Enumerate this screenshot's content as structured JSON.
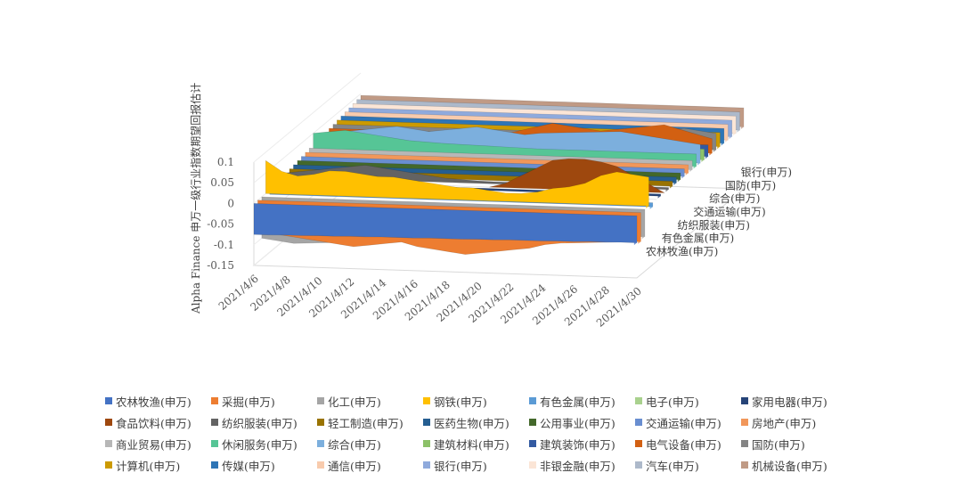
{
  "chart_data": {
    "type": "area",
    "view": "3d",
    "ylabel": "Alpha Finance 申万一级行业指数期望回报估计",
    "ylim": [
      -0.15,
      0.1
    ],
    "yticks": [
      "0.1",
      "0.05",
      "0",
      "-0.05",
      "-0.1",
      "-0.15"
    ],
    "x": [
      "2021/4/6",
      "2021/4/7",
      "2021/4/8",
      "2021/4/9",
      "2021/4/10",
      "2021/4/11",
      "2021/4/12",
      "2021/4/13",
      "2021/4/14",
      "2021/4/15",
      "2021/4/16",
      "2021/4/17",
      "2021/4/18",
      "2021/4/19",
      "2021/4/20",
      "2021/4/21",
      "2021/4/22",
      "2021/4/23",
      "2021/4/24",
      "2021/4/25",
      "2021/4/26",
      "2021/4/27",
      "2021/4/28",
      "2021/4/29",
      "2021/4/30"
    ],
    "xticks": [
      "2021/4/6",
      "2021/4/8",
      "2021/4/10",
      "2021/4/12",
      "2021/4/14",
      "2021/4/16",
      "2021/4/18",
      "2021/4/20",
      "2021/4/22",
      "2021/4/24",
      "2021/4/26",
      "2021/4/28",
      "2021/4/30"
    ],
    "depth_labels": [
      "农林牧渔(申万)",
      "有色金属(申万)",
      "纺织服装(申万)",
      "交通运输(申万)",
      "综合(申万)",
      "国防(申万)",
      "银行(申万)"
    ],
    "legend_placement": "bottom",
    "grid": true,
    "series": [
      {
        "name": "农林牧渔(申万)",
        "color": "#4472c4",
        "values": [
          -0.075,
          -0.075,
          -0.074,
          -0.074,
          -0.073,
          -0.073,
          -0.072,
          -0.072,
          -0.071,
          -0.071,
          -0.071,
          -0.07,
          -0.07,
          -0.07,
          -0.069,
          -0.069,
          -0.068,
          -0.068,
          -0.068,
          -0.067,
          -0.067,
          -0.066,
          -0.066,
          -0.065,
          -0.065
        ]
      },
      {
        "name": "采掘(申万)",
        "color": "#ed7d31",
        "values": [
          -0.07,
          -0.08,
          -0.085,
          -0.09,
          -0.095,
          -0.1,
          -0.105,
          -0.1,
          -0.095,
          -0.09,
          -0.1,
          -0.105,
          -0.11,
          -0.115,
          -0.11,
          -0.105,
          -0.1,
          -0.095,
          -0.085,
          -0.08,
          -0.078,
          -0.076,
          -0.074,
          -0.072,
          -0.07
        ]
      },
      {
        "name": "化工(申万)",
        "color": "#a5a5a5",
        "values": [
          -0.1,
          -0.105,
          -0.11,
          -0.108,
          -0.106,
          -0.104,
          -0.102,
          -0.1,
          -0.098,
          -0.096,
          -0.094,
          -0.092,
          -0.09,
          -0.088,
          -0.086,
          -0.084,
          -0.082,
          -0.08,
          -0.078,
          -0.076,
          -0.074,
          -0.072,
          -0.07,
          -0.068,
          -0.066
        ]
      },
      {
        "name": "钢铁(申万)",
        "color": "#ffc000",
        "values": [
          0.08,
          0.055,
          0.045,
          0.05,
          0.06,
          0.06,
          0.055,
          0.05,
          0.05,
          0.045,
          0.04,
          0.035,
          0.03,
          0.03,
          0.025,
          0.02,
          0.02,
          0.025,
          0.035,
          0.04,
          0.05,
          0.07,
          0.08,
          0.075,
          0.07
        ]
      },
      {
        "name": "有色金属(申万)",
        "color": "#5b9bd5",
        "values": [
          -0.01,
          -0.01,
          -0.01,
          -0.01,
          -0.01,
          -0.01,
          -0.01,
          -0.01,
          -0.01,
          -0.01,
          -0.01,
          -0.01,
          -0.01,
          -0.01,
          -0.01,
          -0.01,
          -0.01,
          -0.01,
          -0.01,
          -0.01,
          -0.01,
          -0.01,
          -0.01,
          -0.01,
          -0.01
        ]
      },
      {
        "name": "电子(申万)",
        "color": "#a9d18e",
        "values": [
          0.0,
          0.0,
          0.0,
          0.0,
          0.0,
          0.0,
          0.0,
          0.0,
          0.0,
          0.0,
          0.0,
          0.0,
          0.0,
          0.0,
          0.0,
          0.0,
          0.0,
          0.0,
          0.0,
          0.0,
          0.0,
          0.0,
          0.0,
          0.0,
          0.0
        ]
      },
      {
        "name": "家用电器(申万)",
        "color": "#264478",
        "values": [
          0.005,
          0.005,
          0.005,
          0.005,
          0.005,
          0.005,
          0.005,
          0.005,
          0.005,
          0.005,
          0.005,
          0.005,
          0.005,
          0.005,
          0.005,
          0.005,
          0.005,
          0.005,
          0.005,
          0.005,
          0.005,
          0.005,
          0.005,
          0.005,
          0.005
        ]
      },
      {
        "name": "食品饮料(申万)",
        "color": "#9e480e",
        "values": [
          0.0,
          0.0,
          0.0,
          0.0,
          0.0,
          0.0,
          0.0,
          0.0,
          0.0,
          0.0,
          0.0,
          0.0,
          0.0,
          0.0,
          0.01,
          0.03,
          0.05,
          0.07,
          0.075,
          0.075,
          0.07,
          0.06,
          0.04,
          0.02,
          0.0
        ]
      },
      {
        "name": "纺织服装(申万)",
        "color": "#636363",
        "values": [
          0.01,
          0.015,
          0.02,
          0.025,
          0.03,
          0.035,
          0.03,
          0.025,
          0.02,
          0.015,
          0.01,
          0.008,
          0.006,
          0.005,
          0.005,
          0.005,
          0.005,
          0.005,
          0.005,
          0.005,
          0.005,
          0.005,
          0.005,
          0.005,
          0.005
        ]
      },
      {
        "name": "轻工制造(申万)",
        "color": "#997300",
        "values": [
          0.012,
          0.012,
          0.012,
          0.012,
          0.012,
          0.012,
          0.012,
          0.012,
          0.012,
          0.012,
          0.012,
          0.012,
          0.012,
          0.012,
          0.012,
          0.012,
          0.012,
          0.012,
          0.012,
          0.012,
          0.012,
          0.012,
          0.012,
          0.012,
          0.012
        ]
      },
      {
        "name": "医药生物(申万)",
        "color": "#255e91",
        "values": [
          0.014,
          0.014,
          0.014,
          0.014,
          0.014,
          0.014,
          0.014,
          0.014,
          0.014,
          0.014,
          0.014,
          0.014,
          0.014,
          0.014,
          0.014,
          0.014,
          0.014,
          0.014,
          0.014,
          0.014,
          0.014,
          0.014,
          0.014,
          0.014,
          0.014
        ]
      },
      {
        "name": "公用事业(申万)",
        "color": "#43682b",
        "values": [
          0.016,
          0.016,
          0.016,
          0.016,
          0.016,
          0.016,
          0.016,
          0.016,
          0.016,
          0.016,
          0.016,
          0.016,
          0.016,
          0.016,
          0.016,
          0.016,
          0.016,
          0.016,
          0.016,
          0.016,
          0.016,
          0.016,
          0.016,
          0.016,
          0.016
        ]
      },
      {
        "name": "交通运输(申万)",
        "color": "#698ed0",
        "values": [
          0.018,
          0.018,
          0.018,
          0.018,
          0.018,
          0.018,
          0.018,
          0.018,
          0.018,
          0.018,
          0.018,
          0.018,
          0.018,
          0.018,
          0.018,
          0.018,
          0.018,
          0.018,
          0.018,
          0.018,
          0.018,
          0.018,
          0.018,
          0.018,
          0.018
        ]
      },
      {
        "name": "房地产(申万)",
        "color": "#f1975a",
        "values": [
          0.02,
          0.02,
          0.02,
          0.02,
          0.02,
          0.02,
          0.02,
          0.02,
          0.02,
          0.02,
          0.02,
          0.02,
          0.02,
          0.02,
          0.02,
          0.02,
          0.02,
          0.02,
          0.02,
          0.02,
          0.02,
          0.02,
          0.02,
          0.02,
          0.02
        ]
      },
      {
        "name": "商业贸易(申万)",
        "color": "#b7b7b7",
        "values": [
          0.022,
          0.022,
          0.022,
          0.022,
          0.022,
          0.022,
          0.022,
          0.022,
          0.022,
          0.022,
          0.022,
          0.022,
          0.022,
          0.022,
          0.022,
          0.022,
          0.022,
          0.022,
          0.022,
          0.022,
          0.022,
          0.022,
          0.022,
          0.022,
          0.022
        ]
      },
      {
        "name": "休闲服务(申万)",
        "color": "#56c596",
        "values": [
          0.05,
          0.055,
          0.06,
          0.055,
          0.05,
          0.045,
          0.04,
          0.038,
          0.036,
          0.035,
          0.034,
          0.033,
          0.032,
          0.031,
          0.03,
          0.03,
          0.03,
          0.03,
          0.03,
          0.03,
          0.03,
          0.03,
          0.03,
          0.03,
          0.03
        ]
      },
      {
        "name": "综合(申万)",
        "color": "#7cafdd",
        "values": [
          0.04,
          0.045,
          0.05,
          0.055,
          0.06,
          0.065,
          0.06,
          0.055,
          0.06,
          0.065,
          0.07,
          0.065,
          0.06,
          0.055,
          0.06,
          0.062,
          0.064,
          0.066,
          0.068,
          0.07,
          0.065,
          0.06,
          0.055,
          0.05,
          0.045
        ]
      },
      {
        "name": "建筑材料(申万)",
        "color": "#8cc168",
        "values": [
          0.026,
          0.026,
          0.026,
          0.026,
          0.026,
          0.026,
          0.026,
          0.026,
          0.026,
          0.026,
          0.026,
          0.026,
          0.026,
          0.026,
          0.026,
          0.026,
          0.026,
          0.026,
          0.026,
          0.026,
          0.026,
          0.026,
          0.026,
          0.026,
          0.026
        ]
      },
      {
        "name": "建筑装饰(申万)",
        "color": "#335aa1",
        "values": [
          0.028,
          0.028,
          0.028,
          0.028,
          0.028,
          0.028,
          0.028,
          0.028,
          0.028,
          0.028,
          0.028,
          0.028,
          0.028,
          0.028,
          0.028,
          0.028,
          0.028,
          0.028,
          0.028,
          0.028,
          0.028,
          0.028,
          0.028,
          0.028,
          0.028
        ]
      },
      {
        "name": "电气设备(申万)",
        "color": "#d26012",
        "values": [
          0.03,
          0.03,
          0.03,
          0.03,
          0.03,
          0.03,
          0.03,
          0.03,
          0.03,
          0.03,
          0.03,
          0.03,
          0.04,
          0.05,
          0.06,
          0.055,
          0.05,
          0.045,
          0.05,
          0.055,
          0.06,
          0.065,
          0.055,
          0.045,
          0.035
        ]
      },
      {
        "name": "国防(申万)",
        "color": "#848484",
        "values": [
          0.032,
          0.032,
          0.032,
          0.032,
          0.032,
          0.032,
          0.032,
          0.032,
          0.032,
          0.032,
          0.032,
          0.032,
          0.032,
          0.032,
          0.032,
          0.032,
          0.032,
          0.032,
          0.032,
          0.032,
          0.04,
          0.045,
          0.05,
          0.045,
          0.04
        ]
      },
      {
        "name": "计算机(申万)",
        "color": "#cc9a00",
        "values": [
          0.034,
          0.034,
          0.034,
          0.034,
          0.034,
          0.034,
          0.034,
          0.034,
          0.034,
          0.034,
          0.034,
          0.034,
          0.034,
          0.034,
          0.034,
          0.034,
          0.034,
          0.034,
          0.034,
          0.034,
          0.034,
          0.034,
          0.034,
          0.034,
          0.034
        ]
      },
      {
        "name": "传媒(申万)",
        "color": "#2e75b6",
        "values": [
          0.036,
          0.036,
          0.036,
          0.036,
          0.036,
          0.036,
          0.036,
          0.036,
          0.036,
          0.036,
          0.036,
          0.036,
          0.036,
          0.036,
          0.036,
          0.036,
          0.036,
          0.036,
          0.036,
          0.036,
          0.036,
          0.036,
          0.036,
          0.036,
          0.036
        ]
      },
      {
        "name": "通信(申万)",
        "color": "#f8cbad",
        "values": [
          0.038,
          0.038,
          0.038,
          0.038,
          0.038,
          0.038,
          0.038,
          0.038,
          0.038,
          0.038,
          0.038,
          0.038,
          0.038,
          0.038,
          0.038,
          0.038,
          0.038,
          0.038,
          0.038,
          0.038,
          0.038,
          0.038,
          0.038,
          0.038,
          0.038
        ]
      },
      {
        "name": "银行(申万)",
        "color": "#8faadc",
        "values": [
          0.04,
          0.04,
          0.04,
          0.04,
          0.04,
          0.04,
          0.04,
          0.04,
          0.04,
          0.04,
          0.04,
          0.04,
          0.04,
          0.04,
          0.04,
          0.04,
          0.04,
          0.04,
          0.04,
          0.04,
          0.04,
          0.04,
          0.04,
          0.04,
          0.04
        ]
      },
      {
        "name": "非银金融(申万)",
        "color": "#fbe5d6",
        "values": [
          0.042,
          0.042,
          0.042,
          0.042,
          0.042,
          0.042,
          0.042,
          0.042,
          0.042,
          0.042,
          0.042,
          0.042,
          0.042,
          0.042,
          0.042,
          0.042,
          0.042,
          0.042,
          0.042,
          0.042,
          0.042,
          0.042,
          0.042,
          0.042,
          0.042
        ]
      },
      {
        "name": "汽车(申万)",
        "color": "#adb9ca",
        "values": [
          0.044,
          0.044,
          0.044,
          0.044,
          0.044,
          0.044,
          0.044,
          0.044,
          0.044,
          0.044,
          0.044,
          0.044,
          0.044,
          0.044,
          0.044,
          0.044,
          0.044,
          0.044,
          0.044,
          0.044,
          0.044,
          0.044,
          0.044,
          0.044,
          0.044
        ]
      },
      {
        "name": "机械设备(申万)",
        "color": "#c09a85",
        "values": [
          0.046,
          0.046,
          0.046,
          0.046,
          0.046,
          0.046,
          0.046,
          0.046,
          0.046,
          0.046,
          0.046,
          0.046,
          0.046,
          0.046,
          0.046,
          0.046,
          0.046,
          0.046,
          0.046,
          0.046,
          0.046,
          0.046,
          0.046,
          0.046,
          0.046
        ]
      }
    ]
  }
}
